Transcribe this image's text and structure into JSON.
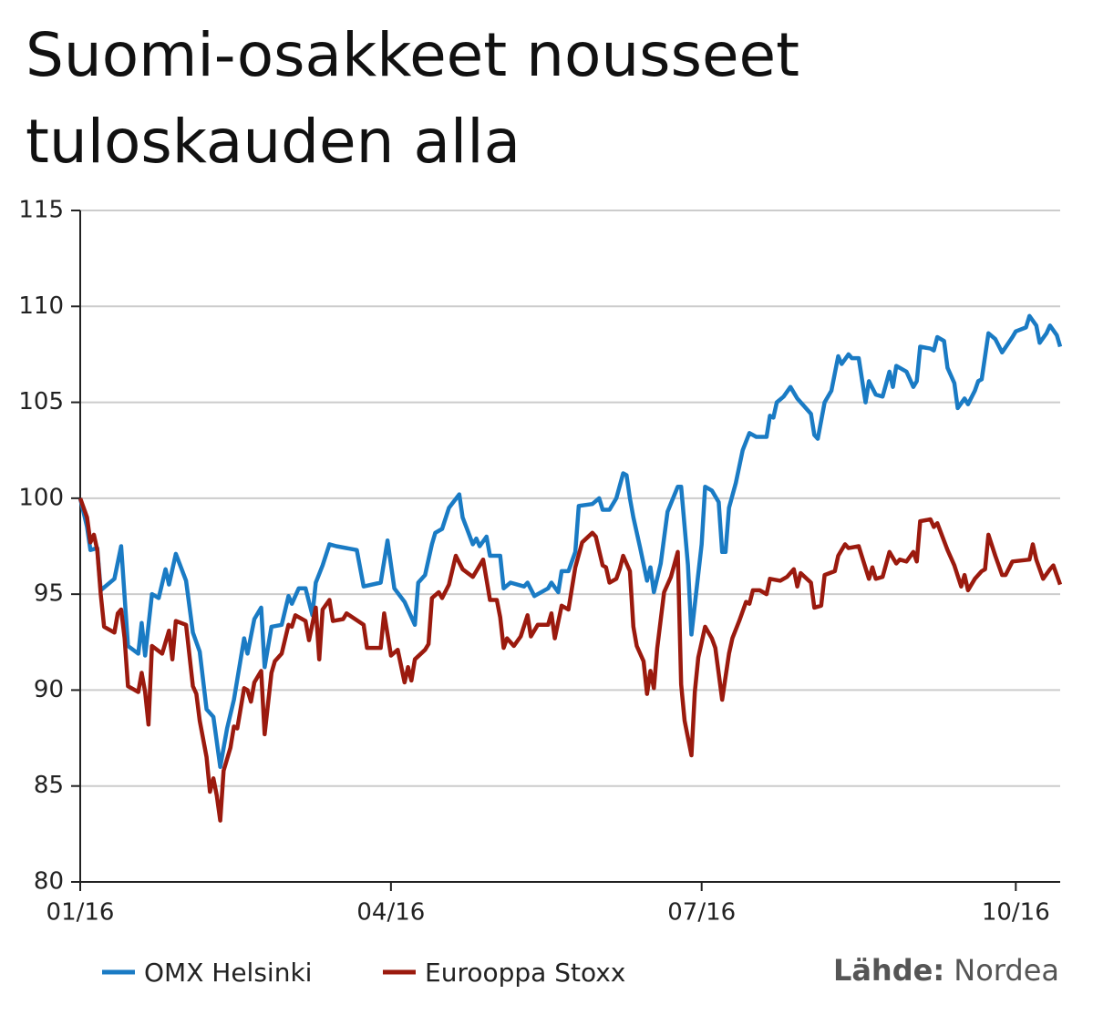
{
  "chart_data": {
    "type": "line",
    "title": [
      "Suomi-osakkeet nousseet",
      "tuloskauden alla"
    ],
    "source_label": "Lähde:",
    "source": "Nordea",
    "xlim": [
      0,
      287
    ],
    "xticks": [
      {
        "value": 0,
        "label": "01/16"
      },
      {
        "value": 91,
        "label": "04/16"
      },
      {
        "value": 182,
        "label": "07/16"
      },
      {
        "value": 274,
        "label": "10/16"
      }
    ],
    "ylim": [
      80,
      115
    ],
    "yticks": [
      80,
      85,
      90,
      95,
      100,
      105,
      110,
      115
    ],
    "grid": true,
    "series": [
      {
        "name": "OMX Helsinki",
        "color": "#1a7bc4",
        "x": [
          0,
          2,
          3,
          5,
          6,
          10,
          12,
          14,
          17,
          18,
          19,
          21,
          23,
          25,
          26,
          28,
          31,
          33,
          35,
          37,
          39,
          41,
          43,
          45,
          48,
          49,
          51,
          53,
          54,
          56,
          59,
          61,
          62,
          64,
          66,
          68,
          69,
          71,
          73,
          75,
          81,
          83,
          88,
          90,
          92,
          95,
          98,
          99,
          101,
          103,
          104,
          106,
          108,
          111,
          112,
          115,
          116,
          117,
          119,
          120,
          123,
          124,
          126,
          130,
          131,
          133,
          137,
          138,
          140,
          141,
          143,
          145,
          146,
          150,
          152,
          153,
          155,
          157,
          159,
          160,
          161,
          162,
          164,
          166,
          167,
          168,
          170,
          172,
          175,
          176,
          178,
          179,
          182,
          183,
          185,
          187,
          188,
          189,
          190,
          192,
          194,
          196,
          198,
          201,
          202,
          203,
          204,
          206,
          208,
          210,
          214,
          215,
          216,
          218,
          220,
          222,
          223,
          225,
          226,
          228,
          230,
          231,
          233,
          235,
          237,
          238,
          239,
          242,
          244,
          245,
          246,
          249,
          250,
          251,
          253,
          254,
          256,
          257,
          259,
          260,
          262,
          263,
          264,
          266,
          268,
          270,
          273,
          274,
          277,
          278,
          280,
          281,
          283,
          284,
          286,
          287
        ],
        "values": [
          100,
          98.5,
          97.3,
          97.4,
          95.2,
          95.8,
          97.5,
          92.3,
          91.9,
          93.5,
          91.8,
          95,
          94.8,
          96.3,
          95.5,
          97.1,
          95.7,
          93,
          92,
          89,
          88.6,
          86,
          88,
          89.5,
          92.7,
          91.9,
          93.7,
          94.3,
          91.2,
          93.3,
          93.4,
          94.9,
          94.5,
          95.3,
          95.3,
          93.9,
          95.6,
          96.5,
          97.6,
          97.5,
          97.3,
          95.4,
          95.6,
          97.8,
          95.3,
          94.6,
          93.4,
          95.6,
          96,
          97.6,
          98.2,
          98.4,
          99.5,
          100.2,
          99,
          97.6,
          97.9,
          97.5,
          98,
          97,
          97,
          95.3,
          95.6,
          95.4,
          95.6,
          94.9,
          95.3,
          95.6,
          95.1,
          96.2,
          96.2,
          97.2,
          99.6,
          99.7,
          100,
          99.4,
          99.4,
          100,
          101.3,
          101.2,
          100,
          99,
          97.4,
          95.7,
          96.4,
          95.1,
          96.6,
          99.3,
          100.6,
          100.6,
          96.5,
          92.9,
          97.6,
          100.6,
          100.4,
          99.8,
          97.2,
          97.2,
          99.5,
          100.8,
          102.5,
          103.4,
          103.2,
          103.2,
          104.3,
          104.2,
          105,
          105.3,
          105.8,
          105.2,
          104.4,
          103.3,
          103.1,
          105,
          105.6,
          107.4,
          107,
          107.5,
          107.3,
          107.3,
          105,
          106.1,
          105.4,
          105.3,
          106.6,
          105.8,
          106.9,
          106.6,
          105.8,
          106.1,
          107.9,
          107.8,
          107.7,
          108.4,
          108.2,
          106.8,
          106,
          104.7,
          105.2,
          104.9,
          105.6,
          106.1,
          106.2,
          108.6,
          108.3,
          107.6,
          108.4,
          108.7,
          108.9,
          109.5,
          109,
          108.1,
          108.6,
          109,
          108.5,
          107.9
        ]
      },
      {
        "name": "Eurooppa Stoxx",
        "color": "#9b1a0e",
        "x": [
          0,
          2,
          3,
          4,
          5,
          6,
          7,
          10,
          11,
          12,
          13,
          14,
          17,
          18,
          19,
          20,
          21,
          24,
          26,
          27,
          28,
          31,
          33,
          34,
          35,
          37,
          38,
          39,
          40,
          41,
          42,
          44,
          45,
          46,
          48,
          49,
          50,
          51,
          53,
          54,
          56,
          57,
          59,
          61,
          62,
          63,
          66,
          67,
          69,
          70,
          71,
          73,
          74,
          77,
          78,
          83,
          84,
          88,
          89,
          91,
          93,
          95,
          96,
          97,
          98,
          101,
          102,
          103,
          105,
          106,
          108,
          110,
          112,
          115,
          116,
          118,
          120,
          122,
          123,
          124,
          125,
          127,
          129,
          131,
          132,
          134,
          137,
          138,
          139,
          141,
          143,
          145,
          147,
          150,
          151,
          153,
          154,
          155,
          157,
          158,
          159,
          161,
          162,
          163,
          165,
          166,
          167,
          168,
          169,
          171,
          173,
          175,
          176,
          177,
          179,
          180,
          181,
          183,
          185,
          186,
          188,
          190,
          191,
          193,
          195,
          196,
          197,
          199,
          201,
          202,
          205,
          207,
          209,
          210,
          211,
          214,
          215,
          217,
          218,
          221,
          222,
          224,
          225,
          228,
          231,
          232,
          233,
          235,
          237,
          239,
          240,
          242,
          244,
          245,
          246,
          249,
          250,
          251,
          254,
          256,
          258,
          259,
          260,
          262,
          264,
          265,
          266,
          268,
          270,
          271,
          273,
          278,
          279,
          280,
          282,
          284,
          285,
          287
        ],
        "values": [
          100,
          99,
          97.7,
          98.1,
          97.3,
          95,
          93.3,
          93,
          94,
          94.2,
          92.7,
          90.2,
          89.9,
          90.9,
          89.9,
          88.2,
          92.3,
          91.9,
          93.1,
          91.6,
          93.6,
          93.4,
          90.2,
          89.8,
          88.4,
          86.5,
          84.7,
          85.4,
          84.5,
          83.2,
          85.8,
          87,
          88.1,
          88,
          90.1,
          90,
          89.4,
          90.4,
          91,
          87.7,
          90.9,
          91.5,
          91.9,
          93.4,
          93.3,
          93.9,
          93.6,
          92.6,
          94.3,
          91.6,
          94.2,
          94.7,
          93.6,
          93.7,
          94,
          93.4,
          92.2,
          92.2,
          94,
          91.8,
          92.1,
          90.4,
          91.2,
          90.5,
          91.6,
          92.1,
          92.4,
          94.8,
          95.1,
          94.8,
          95.5,
          97,
          96.3,
          95.9,
          96.2,
          96.8,
          94.7,
          94.7,
          93.8,
          92.2,
          92.7,
          92.3,
          92.8,
          93.9,
          92.8,
          93.4,
          93.4,
          94,
          92.7,
          94.4,
          94.2,
          96.4,
          97.7,
          98.2,
          98,
          96.5,
          96.4,
          95.6,
          95.8,
          96.3,
          97,
          96.2,
          93.3,
          92.3,
          91.5,
          89.8,
          91,
          90.1,
          92.2,
          95.1,
          95.9,
          97.2,
          90.3,
          88.4,
          86.6,
          89.9,
          91.7,
          93.3,
          92.7,
          92.2,
          89.5,
          91.9,
          92.7,
          93.6,
          94.6,
          94.5,
          95.2,
          95.2,
          95,
          95.8,
          95.7,
          95.9,
          96.3,
          95.4,
          96.1,
          95.6,
          94.3,
          94.4,
          96,
          96.2,
          97,
          97.6,
          97.4,
          97.5,
          95.8,
          96.4,
          95.8,
          95.9,
          97.2,
          96.6,
          96.8,
          96.7,
          97.2,
          96.7,
          98.8,
          98.9,
          98.5,
          98.7,
          97.3,
          96.5,
          95.4,
          96,
          95.2,
          95.8,
          96.2,
          96.3,
          98.1,
          97,
          96,
          96,
          96.7,
          96.8,
          97.6,
          96.8,
          95.8,
          96.3,
          96.5,
          95.5
        ]
      }
    ]
  }
}
